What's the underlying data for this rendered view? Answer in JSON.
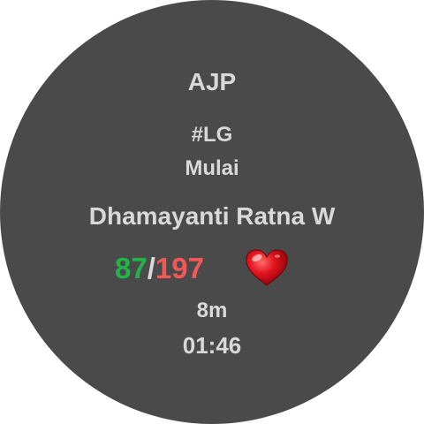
{
  "header": {
    "title": "AJP"
  },
  "session": {
    "tag": "#LG",
    "location": "Mulai",
    "person": "Dhamayanti Ratna W"
  },
  "score": {
    "good": "87",
    "separator": "/",
    "total": "197",
    "icon": "heart-icon"
  },
  "timer": {
    "elapsed": "8m",
    "clock": "01:46"
  },
  "colors": {
    "background": "#4a4a4a",
    "text": "#d9d9d9",
    "good": "#22b34a",
    "total": "#f25858",
    "heart": "#e0141e"
  }
}
